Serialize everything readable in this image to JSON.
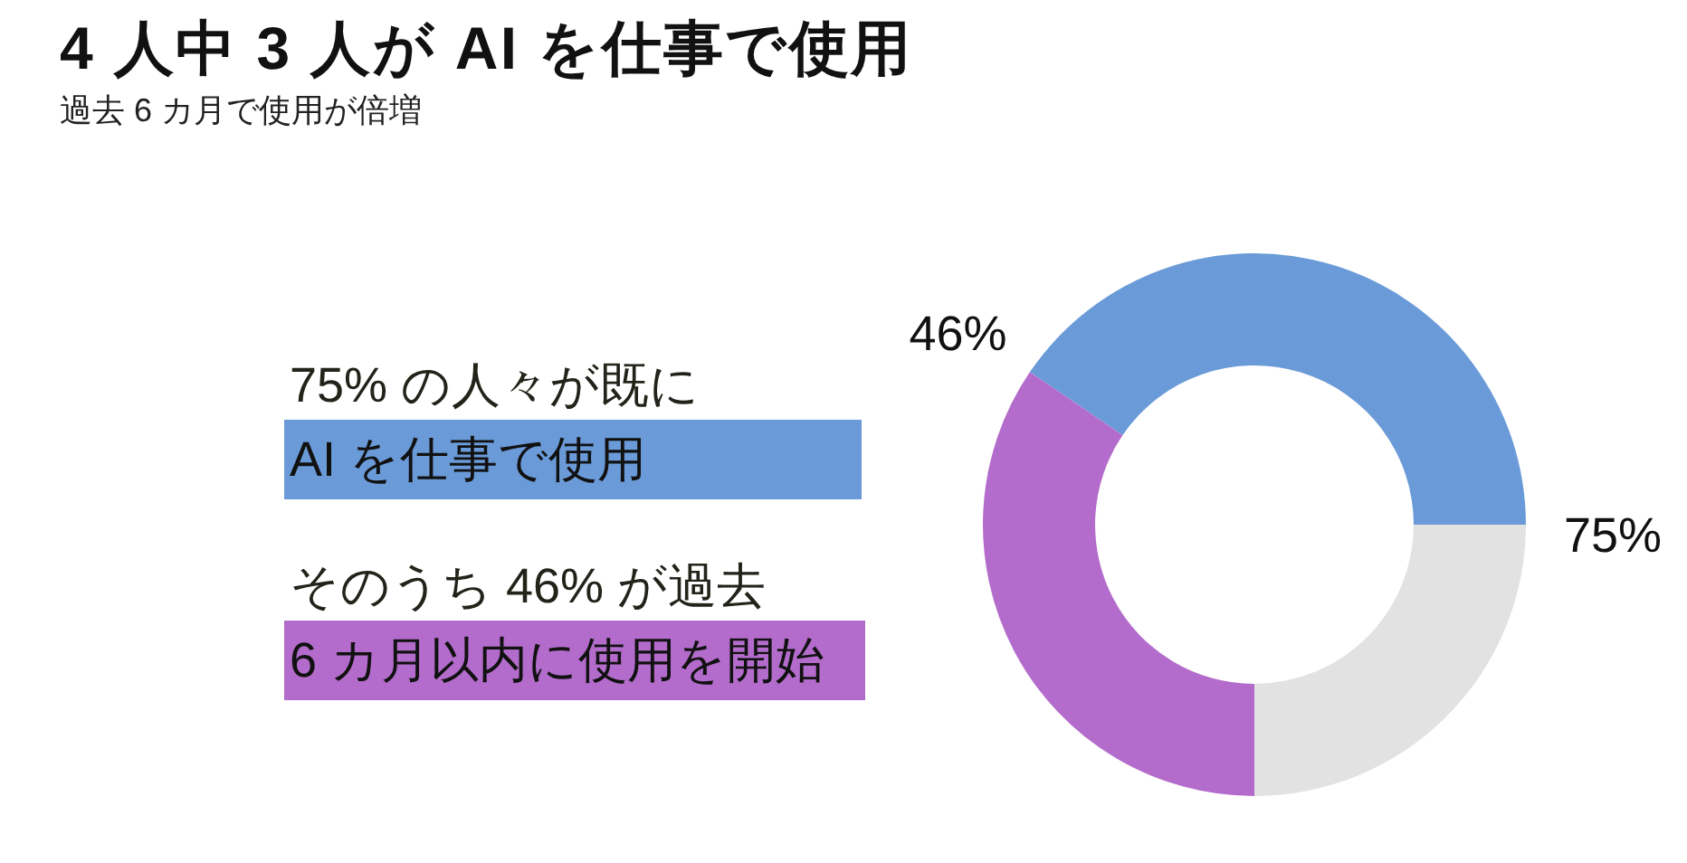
{
  "chart_data": {
    "type": "donut",
    "title": "4 人中 3 人が AI を仕事で使用",
    "subtitle": "過去 6 カ月で使用が倍増",
    "categories": [
      "AI を仕事で使用",
      "6 カ月以内に使用を開始",
      null
    ],
    "values": [
      40.5,
      34.5,
      25
    ],
    "colors": [
      "#6a9bd8",
      "#b36ccb",
      "#e2e2e2"
    ],
    "annotations": [
      "75% の人々が既に",
      "そのうち 46% が過去",
      "46%",
      "75%"
    ],
    "legend": "left"
  }
}
